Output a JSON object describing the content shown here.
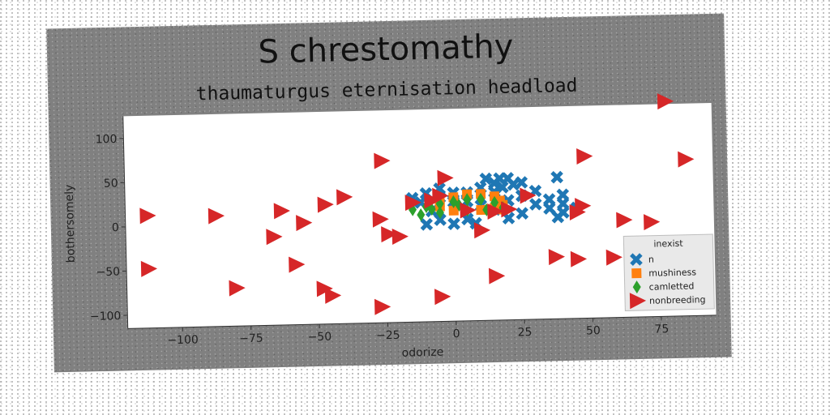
{
  "chart_data": {
    "type": "scatter",
    "title": "S chrestomathy",
    "subtitle": "thaumaturgus eternisation headload",
    "xlabel": "odorize",
    "ylabel": "bothersomely",
    "xlim": [
      -120,
      95
    ],
    "ylim": [
      -115,
      125
    ],
    "xticks": [
      -100,
      -75,
      -50,
      -25,
      0,
      25,
      50,
      75
    ],
    "yticks": [
      -100,
      -50,
      0,
      50,
      100
    ],
    "grid": false,
    "legend": {
      "title": "inexist",
      "position": "bottom-right"
    },
    "series": [
      {
        "name": "n",
        "marker": "x",
        "color": "#1f77b4",
        "points": [
          [
            -10,
            30
          ],
          [
            -5,
            35
          ],
          [
            -12,
            20
          ],
          [
            -8,
            10
          ],
          [
            -15,
            25
          ],
          [
            -10,
            -5
          ],
          [
            -5,
            0
          ],
          [
            0,
            -5
          ],
          [
            5,
            0
          ],
          [
            0,
            20
          ],
          [
            5,
            30
          ],
          [
            10,
            35
          ],
          [
            15,
            40
          ],
          [
            20,
            45
          ],
          [
            25,
            40
          ],
          [
            15,
            30
          ],
          [
            20,
            20
          ],
          [
            25,
            25
          ],
          [
            15,
            10
          ],
          [
            20,
            0
          ],
          [
            25,
            5
          ],
          [
            10,
            15
          ],
          [
            18,
            35
          ],
          [
            22,
            38
          ],
          [
            30,
            15
          ],
          [
            35,
            10
          ],
          [
            40,
            5
          ],
          [
            35,
            20
          ],
          [
            40,
            15
          ],
          [
            45,
            10
          ],
          [
            38,
            0
          ],
          [
            40,
            25
          ],
          [
            30,
            30
          ],
          [
            12,
            45
          ],
          [
            5,
            20
          ],
          [
            -5,
            25
          ],
          [
            0,
            30
          ],
          [
            8,
            -5
          ],
          [
            17,
            45
          ],
          [
            38,
            45
          ]
        ]
      },
      {
        "name": "mushiness",
        "marker": "s",
        "color": "#ff7f0e",
        "points": [
          [
            -5,
            20
          ],
          [
            0,
            25
          ],
          [
            5,
            28
          ],
          [
            10,
            28
          ],
          [
            15,
            25
          ],
          [
            17,
            20
          ],
          [
            18,
            15
          ],
          [
            18,
            10
          ],
          [
            10,
            10
          ],
          [
            0,
            10
          ],
          [
            -5,
            15
          ],
          [
            15,
            12
          ]
        ]
      },
      {
        "name": "camletted",
        "marker": "d",
        "color": "#2ca02c",
        "points": [
          [
            -15,
            12
          ],
          [
            -10,
            15
          ],
          [
            -5,
            18
          ],
          [
            0,
            20
          ],
          [
            5,
            22
          ],
          [
            10,
            22
          ],
          [
            15,
            18
          ],
          [
            18,
            12
          ],
          [
            -12,
            6
          ],
          [
            -5,
            8
          ],
          [
            5,
            10
          ],
          [
            12,
            10
          ],
          [
            -8,
            12
          ],
          [
            2,
            16
          ]
        ]
      },
      {
        "name": "nonbreeding",
        "marker": ">",
        "color": "#d62728",
        "points": [
          [
            -112,
            12
          ],
          [
            -87,
            10
          ],
          [
            -63,
            14
          ],
          [
            -66,
            -15
          ],
          [
            -55,
            0
          ],
          [
            -47,
            20
          ],
          [
            -40,
            28
          ],
          [
            -26,
            68
          ],
          [
            -27,
            2
          ],
          [
            -24,
            -15
          ],
          [
            -20,
            -18
          ],
          [
            -15,
            20
          ],
          [
            -8,
            22
          ],
          [
            -5,
            27
          ],
          [
            -3,
            47
          ],
          [
            5,
            10
          ],
          [
            10,
            -13
          ],
          [
            15,
            8
          ],
          [
            20,
            10
          ],
          [
            27,
            25
          ],
          [
            -112,
            -48
          ],
          [
            -80,
            -72
          ],
          [
            -58,
            -47
          ],
          [
            -48,
            -75
          ],
          [
            -45,
            -83
          ],
          [
            -27,
            -97
          ],
          [
            -5,
            -87
          ],
          [
            15,
            -65
          ],
          [
            37,
            -45
          ],
          [
            45,
            -48
          ],
          [
            58,
            -47
          ],
          [
            45,
            5
          ],
          [
            47,
            12
          ],
          [
            48,
            68
          ],
          [
            62,
            -5
          ],
          [
            72,
            -8
          ],
          [
            78,
            128
          ],
          [
            85,
            62
          ]
        ]
      }
    ]
  }
}
